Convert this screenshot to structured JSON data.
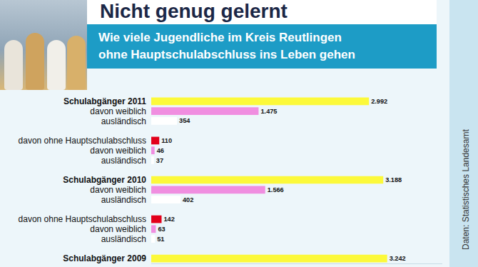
{
  "header": {
    "title": "Nicht genug gelernt",
    "subtitle": [
      "Wie viele Jugendliche im Kreis Reutlingen",
      "ohne Hauptschulabschluss ins Leben gehen"
    ],
    "source": "Daten: Statistisches Landesamt"
  },
  "chart_data": {
    "type": "bar",
    "orientation": "horizontal",
    "categories": [
      "Schulabgänger 2011",
      "davon weiblich",
      "ausländisch",
      null,
      "davon ohne Hauptschulabschluss",
      "davon weiblich",
      "ausländisch",
      null,
      "Schulabgänger 2010",
      "davon weiblich",
      "ausländisch",
      null,
      "davon ohne Hauptschulabschluss",
      "davon weiblich",
      "ausländisch",
      null,
      "Schulabgänger 2009"
    ],
    "values": [
      2992,
      1475,
      354,
      null,
      110,
      46,
      37,
      null,
      3188,
      1566,
      402,
      null,
      142,
      63,
      51,
      null,
      3242
    ],
    "value_labels": [
      "2.992",
      "1.475",
      "354",
      null,
      "110",
      "46",
      "37",
      null,
      "3.188",
      "1.566",
      "402",
      null,
      "142",
      "63",
      "51",
      null,
      "3.242"
    ],
    "colors": [
      "#fcf93a",
      "#f08ee0",
      "#ffffff",
      null,
      "#e2001a",
      "#f08ee0",
      "#ffffff",
      null,
      "#fcf93a",
      "#f08ee0",
      "#ffffff",
      null,
      "#e2001a",
      "#f08ee0",
      "#ffffff",
      null,
      "#fcf93a"
    ],
    "data_labels": true,
    "tick_labels": "y",
    "grid": false,
    "xlim": [
      0,
      4000
    ],
    "xticks": []
  }
}
